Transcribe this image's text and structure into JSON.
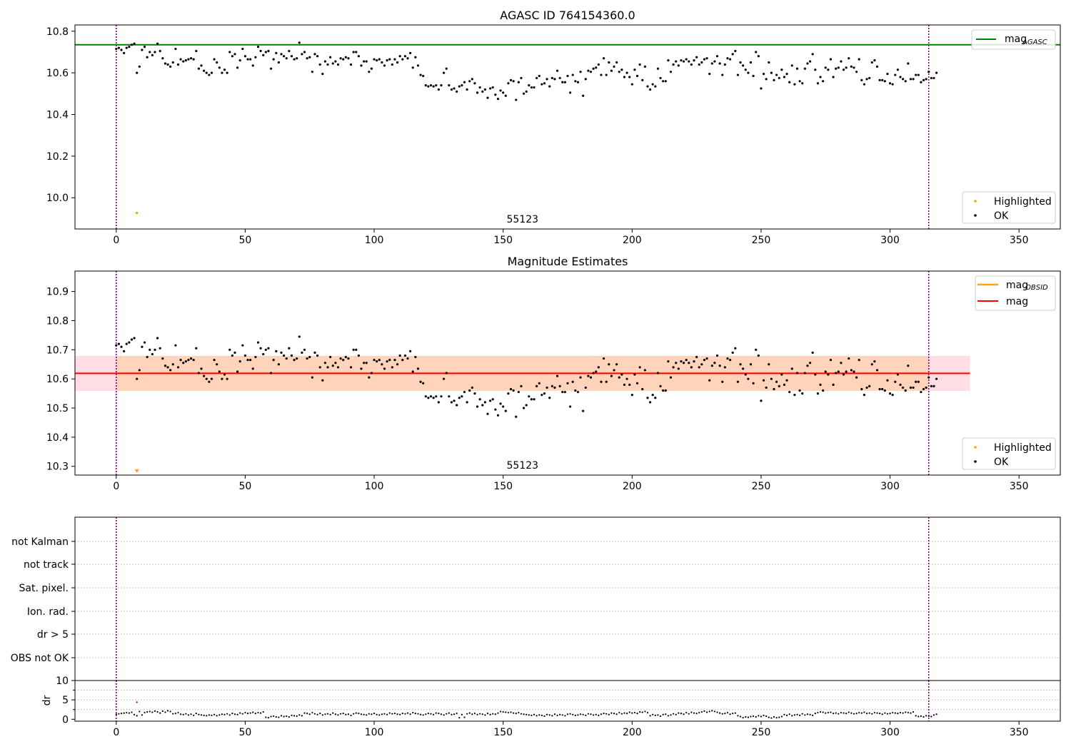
{
  "colors": {
    "agasc_line": "#008000",
    "obsid_line": "#ffa500",
    "mag_line": "#ff0000",
    "ok_points": "#000000",
    "highlighted_points": "#ffa500",
    "obs_boundary": "#800080",
    "band_fill": "#ffb6c1",
    "band_fill_inner": "#ffcc99",
    "flag_grid": "#b0b0b0",
    "dr_highlight": "#ff0000"
  },
  "chart_data": [
    {
      "type": "scatter",
      "title": "AGASC ID 764154360.0",
      "xlim": [
        -16,
        366
      ],
      "ylim": [
        9.85,
        10.83
      ],
      "xticks": [
        0,
        50,
        100,
        150,
        200,
        250,
        300,
        350
      ],
      "yticks": [
        10.0,
        10.2,
        10.4,
        10.6,
        10.8
      ],
      "ytick_labels": [
        "10.0",
        "10.2",
        "10.4",
        "10.6",
        "10.8"
      ],
      "obs_boundaries": [
        0,
        315
      ],
      "obsid_annotation": {
        "text": "55123",
        "x": 157.5
      },
      "hline": {
        "name": "mag_AGASC",
        "y": 10.735,
        "x": [
          -16,
          366
        ]
      },
      "highlighted": {
        "x": [
          8
        ],
        "y": [
          9.927
        ]
      },
      "legend_lines": [
        {
          "label": "mag",
          "sub": "AGASC"
        }
      ],
      "legend_points": [
        {
          "label": "Highlighted"
        },
        {
          "label": "OK"
        }
      ]
    },
    {
      "type": "scatter",
      "title": "Magnitude Estimates",
      "xlim": [
        -16,
        366
      ],
      "ylim": [
        10.27,
        10.97
      ],
      "xticks": [
        0,
        50,
        100,
        150,
        200,
        250,
        300,
        350
      ],
      "yticks": [
        10.3,
        10.4,
        10.5,
        10.6,
        10.7,
        10.8,
        10.9
      ],
      "ytick_labels": [
        "10.3",
        "10.4",
        "10.5",
        "10.6",
        "10.7",
        "10.8",
        "10.9"
      ],
      "obs_boundaries": [
        0,
        315
      ],
      "obsid_annotation": {
        "text": "55123",
        "x": 157.5
      },
      "mag_line": {
        "y": 10.619,
        "x": [
          -16,
          331
        ]
      },
      "band": {
        "low": 10.559,
        "high": 10.679,
        "x": [
          -16,
          331
        ]
      },
      "highlighted": {
        "x": [
          8
        ],
        "y": [
          10.272
        ]
      },
      "legend_lines": [
        {
          "label": "mag",
          "sub": "OBSID"
        },
        {
          "label": "mag",
          "sub": ""
        }
      ],
      "legend_points": [
        {
          "label": "Highlighted"
        },
        {
          "label": "OK"
        }
      ]
    },
    {
      "type": "scatter",
      "xlim": [
        -16,
        366
      ],
      "xticks": [
        0,
        50,
        100,
        150,
        200,
        250,
        300,
        350
      ],
      "obs_boundaries": [
        0,
        315
      ],
      "flag_labels": [
        "not Kalman",
        "not track",
        "Sat. pixel.",
        "Ion. rad.",
        "dr > 5",
        "OBS not OK"
      ],
      "dr_ylabel": "dr",
      "dr_ylim": [
        -0.5,
        10
      ],
      "dr_yticks": [
        0,
        5,
        10
      ],
      "dr_ytick_labels": [
        "0",
        "5",
        "10"
      ],
      "dr_highlight": {
        "x": [
          8
        ],
        "y": [
          4.4
        ]
      },
      "dr_values": [
        1.3,
        1.4,
        1.5,
        1.6,
        1.7,
        1.6,
        1.8,
        1.2,
        0.9,
        2.0,
        1.1,
        1.7,
        1.9,
        2.0,
        1.8,
        2.1,
        1.9,
        1.6,
        2.1,
        1.8,
        2.2,
        2.0,
        1.4,
        1.5,
        1.7,
        1.3,
        1.2,
        1.4,
        1.1,
        1.3,
        1.0,
        1.5,
        1.2,
        1.1,
        1.0,
        0.9,
        1.1,
        1.0,
        1.2,
        0.9,
        1.1,
        1.3,
        1.2,
        1.4,
        1.1,
        1.5,
        1.3,
        1.2,
        1.6,
        1.4,
        1.7,
        1.5,
        1.6,
        1.8,
        1.5,
        1.7,
        1.6,
        1.9,
        0.5,
        0.4,
        0.7,
        0.8,
        0.6,
        0.5,
        0.9,
        0.7,
        0.8,
        0.6,
        1.0,
        0.9,
        0.8,
        1.1,
        0.9,
        1.6,
        1.5,
        1.3,
        1.7,
        1.4,
        1.2,
        1.5,
        1.1,
        1.3,
        1.4,
        1.2,
        1.6,
        1.3,
        1.1,
        1.4,
        1.5,
        1.2,
        1.3,
        1.0,
        1.4,
        1.6,
        1.5,
        1.3,
        1.2,
        1.1,
        1.4,
        1.3,
        1.5,
        1.2,
        1.1,
        1.3,
        1.4,
        1.2,
        1.6,
        1.4,
        1.5,
        1.3,
        1.2,
        1.5,
        1.4,
        1.6,
        1.3,
        1.7,
        1.5,
        1.4,
        1.2,
        1.1,
        1.3,
        1.5,
        1.4,
        1.2,
        1.6,
        1.5,
        1.3,
        1.1,
        1.4,
        1.6,
        1.2,
        1.3,
        1.5,
        0.4,
        1.2,
        0.5,
        1.4,
        1.6,
        1.3,
        1.5,
        1.2,
        1.4,
        1.3,
        1.1,
        1.5,
        1.2,
        1.4,
        1.3,
        1.6,
        2.0,
        1.9,
        1.8,
        1.7,
        1.8,
        1.6,
        1.5,
        1.7,
        1.4,
        1.3,
        1.2,
        1.1,
        1.0,
        1.2,
        0.9,
        1.1,
        1.0,
        0.8,
        1.2,
        1.1,
        0.9,
        1.3,
        1.0,
        1.2,
        1.1,
        0.9,
        1.3,
        1.4,
        1.2,
        1.0,
        1.1,
        1.3,
        1.2,
        1.0,
        1.4,
        1.3,
        1.1,
        1.2,
        1.0,
        1.3,
        1.5,
        1.4,
        1.2,
        1.6,
        1.5,
        1.3,
        1.7,
        1.4,
        1.6,
        1.5,
        1.8,
        1.6,
        1.7,
        1.5,
        1.9,
        1.8,
        2.0,
        1.7,
        0.9,
        1.2,
        1.0,
        1.1,
        0.8,
        1.2,
        1.3,
        0.9,
        1.1,
        1.4,
        1.2,
        1.6,
        1.5,
        1.3,
        1.7,
        1.4,
        1.8,
        1.6,
        1.5,
        1.7,
        1.9,
        2.1,
        1.8,
        2.0,
        2.2,
        2.0,
        1.8,
        1.6,
        1.4,
        1.5,
        1.7,
        1.3,
        1.5,
        1.6,
        0.9,
        0.7,
        0.4,
        0.6,
        0.5,
        0.7,
        0.8,
        0.6,
        0.9,
        0.7,
        1.0,
        0.8,
        0.5,
        0.3,
        0.6,
        0.4,
        0.5,
        0.7,
        1.2,
        1.0,
        1.3,
        0.9,
        1.1,
        1.2,
        1.0,
        1.4,
        1.1,
        1.3,
        1.2,
        1.0,
        1.5,
        1.7,
        1.9,
        1.8,
        1.6,
        1.7,
        1.8,
        1.5,
        1.6,
        1.4,
        1.7,
        1.6,
        1.5,
        1.8,
        1.6,
        1.4,
        1.5,
        1.7,
        1.6,
        1.8,
        1.5,
        1.6,
        1.4,
        1.7,
        1.6,
        1.5,
        1.3,
        1.6,
        1.4,
        1.5,
        1.7,
        1.6,
        1.5,
        1.7,
        1.6,
        1.8,
        1.7,
        1.6,
        1.9,
        0.9,
        0.7,
        0.8,
        0.6,
        0.9,
        0.8,
        0.7,
        1.1,
        1.3
      ],
      "legend": "none"
    }
  ],
  "points": [
    [
      0,
      10.715
    ],
    [
      1,
      10.72
    ],
    [
      2,
      10.71
    ],
    [
      3,
      10.695
    ],
    [
      4,
      10.72
    ],
    [
      5,
      10.725
    ],
    [
      6,
      10.735
    ],
    [
      7,
      10.74
    ],
    [
      8,
      10.6
    ],
    [
      9,
      10.63
    ],
    [
      10,
      10.71
    ],
    [
      11,
      10.725
    ],
    [
      12,
      10.675
    ],
    [
      13,
      10.7
    ],
    [
      14,
      10.685
    ],
    [
      15,
      10.7
    ],
    [
      16,
      10.74
    ],
    [
      17,
      10.705
    ],
    [
      18,
      10.67
    ],
    [
      19,
      10.645
    ],
    [
      20,
      10.64
    ],
    [
      21,
      10.63
    ],
    [
      22,
      10.65
    ],
    [
      23,
      10.715
    ],
    [
      24,
      10.64
    ],
    [
      25,
      10.665
    ],
    [
      26,
      10.655
    ],
    [
      27,
      10.66
    ],
    [
      28,
      10.665
    ],
    [
      29,
      10.67
    ],
    [
      30,
      10.665
    ],
    [
      31,
      10.705
    ],
    [
      32,
      10.62
    ],
    [
      33,
      10.635
    ],
    [
      34,
      10.61
    ],
    [
      35,
      10.6
    ],
    [
      36,
      10.59
    ],
    [
      37,
      10.6
    ],
    [
      38,
      10.665
    ],
    [
      39,
      10.65
    ],
    [
      40,
      10.625
    ],
    [
      41,
      10.6
    ],
    [
      42,
      10.615
    ],
    [
      43,
      10.6
    ],
    [
      44,
      10.7
    ],
    [
      45,
      10.68
    ],
    [
      46,
      10.69
    ],
    [
      47,
      10.625
    ],
    [
      48,
      10.66
    ],
    [
      49,
      10.715
    ],
    [
      50,
      10.68
    ],
    [
      51,
      10.665
    ],
    [
      52,
      10.665
    ],
    [
      53,
      10.635
    ],
    [
      54,
      10.675
    ],
    [
      55,
      10.725
    ],
    [
      56,
      10.705
    ],
    [
      57,
      10.685
    ],
    [
      58,
      10.7
    ],
    [
      59,
      10.705
    ],
    [
      60,
      10.62
    ],
    [
      61,
      10.665
    ],
    [
      62,
      10.695
    ],
    [
      63,
      10.65
    ],
    [
      64,
      10.69
    ],
    [
      65,
      10.68
    ],
    [
      66,
      10.67
    ],
    [
      67,
      10.705
    ],
    [
      68,
      10.68
    ],
    [
      69,
      10.665
    ],
    [
      70,
      10.67
    ],
    [
      71,
      10.745
    ],
    [
      72,
      10.69
    ],
    [
      73,
      10.7
    ],
    [
      74,
      10.67
    ],
    [
      75,
      10.675
    ],
    [
      76,
      10.605
    ],
    [
      77,
      10.69
    ],
    [
      78,
      10.68
    ],
    [
      79,
      10.64
    ],
    [
      80,
      10.595
    ],
    [
      81,
      10.655
    ],
    [
      82,
      10.64
    ],
    [
      83,
      10.675
    ],
    [
      84,
      10.645
    ],
    [
      85,
      10.655
    ],
    [
      86,
      10.64
    ],
    [
      87,
      10.67
    ],
    [
      88,
      10.665
    ],
    [
      89,
      10.675
    ],
    [
      90,
      10.67
    ],
    [
      91,
      10.64
    ],
    [
      92,
      10.7
    ],
    [
      93,
      10.7
    ],
    [
      94,
      10.68
    ],
    [
      95,
      10.635
    ],
    [
      96,
      10.655
    ],
    [
      97,
      10.655
    ],
    [
      98,
      10.605
    ],
    [
      99,
      10.62
    ],
    [
      100,
      10.665
    ],
    [
      101,
      10.66
    ],
    [
      102,
      10.665
    ],
    [
      103,
      10.65
    ],
    [
      104,
      10.635
    ],
    [
      105,
      10.66
    ],
    [
      106,
      10.665
    ],
    [
      107,
      10.64
    ],
    [
      108,
      10.665
    ],
    [
      109,
      10.65
    ],
    [
      110,
      10.68
    ],
    [
      111,
      10.665
    ],
    [
      112,
      10.68
    ],
    [
      113,
      10.67
    ],
    [
      114,
      10.695
    ],
    [
      115,
      10.625
    ],
    [
      116,
      10.675
    ],
    [
      117,
      10.635
    ],
    [
      118,
      10.59
    ],
    [
      119,
      10.585
    ],
    [
      120,
      10.54
    ],
    [
      121,
      10.535
    ],
    [
      122,
      10.54
    ],
    [
      123,
      10.535
    ],
    [
      124,
      10.54
    ],
    [
      125,
      10.52
    ],
    [
      126,
      10.54
    ],
    [
      127,
      10.6
    ],
    [
      128,
      10.62
    ],
    [
      129,
      10.54
    ],
    [
      130,
      10.52
    ],
    [
      131,
      10.525
    ],
    [
      132,
      10.51
    ],
    [
      133,
      10.535
    ],
    [
      134,
      10.54
    ],
    [
      135,
      10.555
    ],
    [
      136,
      10.52
    ],
    [
      137,
      10.56
    ],
    [
      138,
      10.57
    ],
    [
      139,
      10.55
    ],
    [
      140,
      10.505
    ],
    [
      141,
      10.53
    ],
    [
      142,
      10.51
    ],
    [
      143,
      10.52
    ],
    [
      144,
      10.48
    ],
    [
      145,
      10.525
    ],
    [
      146,
      10.53
    ],
    [
      147,
      10.495
    ],
    [
      148,
      10.475
    ],
    [
      149,
      10.515
    ],
    [
      150,
      10.505
    ],
    [
      151,
      10.49
    ],
    [
      152,
      10.55
    ],
    [
      153,
      10.565
    ],
    [
      154,
      10.56
    ],
    [
      155,
      10.47
    ],
    [
      156,
      10.555
    ],
    [
      157,
      10.575
    ],
    [
      158,
      10.5
    ],
    [
      159,
      10.51
    ],
    [
      160,
      10.54
    ],
    [
      161,
      10.53
    ],
    [
      162,
      10.53
    ],
    [
      163,
      10.575
    ],
    [
      164,
      10.585
    ],
    [
      165,
      10.545
    ],
    [
      166,
      10.55
    ],
    [
      167,
      10.57
    ],
    [
      168,
      10.535
    ],
    [
      169,
      10.575
    ],
    [
      170,
      10.57
    ],
    [
      171,
      10.61
    ],
    [
      172,
      10.575
    ],
    [
      173,
      10.555
    ],
    [
      174,
      10.555
    ],
    [
      175,
      10.585
    ],
    [
      176,
      10.505
    ],
    [
      177,
      10.59
    ],
    [
      178,
      10.56
    ],
    [
      179,
      10.555
    ],
    [
      180,
      10.605
    ],
    [
      181,
      10.49
    ],
    [
      182,
      10.57
    ],
    [
      183,
      10.61
    ],
    [
      184,
      10.605
    ],
    [
      185,
      10.62
    ],
    [
      186,
      10.625
    ],
    [
      187,
      10.64
    ],
    [
      188,
      10.59
    ],
    [
      189,
      10.67
    ],
    [
      190,
      10.59
    ],
    [
      191,
      10.65
    ],
    [
      192,
      10.61
    ],
    [
      193,
      10.63
    ],
    [
      194,
      10.65
    ],
    [
      195,
      10.605
    ],
    [
      196,
      10.615
    ],
    [
      197,
      10.58
    ],
    [
      198,
      10.6
    ],
    [
      199,
      10.58
    ],
    [
      200,
      10.545
    ],
    [
      201,
      10.615
    ],
    [
      202,
      10.585
    ],
    [
      203,
      10.64
    ],
    [
      204,
      10.565
    ],
    [
      205,
      10.63
    ],
    [
      206,
      10.535
    ],
    [
      207,
      10.52
    ],
    [
      208,
      10.545
    ],
    [
      209,
      10.535
    ],
    [
      210,
      10.62
    ],
    [
      211,
      10.575
    ],
    [
      212,
      10.56
    ],
    [
      213,
      10.56
    ],
    [
      214,
      10.66
    ],
    [
      215,
      10.605
    ],
    [
      216,
      10.64
    ],
    [
      217,
      10.655
    ],
    [
      218,
      10.635
    ],
    [
      219,
      10.66
    ],
    [
      220,
      10.655
    ],
    [
      221,
      10.665
    ],
    [
      222,
      10.655
    ],
    [
      223,
      10.64
    ],
    [
      224,
      10.66
    ],
    [
      225,
      10.675
    ],
    [
      226,
      10.64
    ],
    [
      227,
      10.65
    ],
    [
      228,
      10.665
    ],
    [
      229,
      10.67
    ],
    [
      230,
      10.595
    ],
    [
      231,
      10.645
    ],
    [
      232,
      10.655
    ],
    [
      233,
      10.68
    ],
    [
      234,
      10.645
    ],
    [
      235,
      10.59
    ],
    [
      236,
      10.64
    ],
    [
      237,
      10.67
    ],
    [
      238,
      10.665
    ],
    [
      239,
      10.69
    ],
    [
      240,
      10.705
    ],
    [
      241,
      10.59
    ],
    [
      242,
      10.65
    ],
    [
      243,
      10.635
    ],
    [
      244,
      10.615
    ],
    [
      245,
      10.6
    ],
    [
      246,
      10.65
    ],
    [
      247,
      10.585
    ],
    [
      248,
      10.7
    ],
    [
      249,
      10.68
    ],
    [
      250,
      10.525
    ],
    [
      251,
      10.595
    ],
    [
      252,
      10.57
    ],
    [
      253,
      10.65
    ],
    [
      254,
      10.6
    ],
    [
      255,
      10.565
    ],
    [
      256,
      10.59
    ],
    [
      257,
      10.575
    ],
    [
      258,
      10.615
    ],
    [
      259,
      10.58
    ],
    [
      260,
      10.595
    ],
    [
      261,
      10.555
    ],
    [
      262,
      10.635
    ],
    [
      263,
      10.545
    ],
    [
      264,
      10.62
    ],
    [
      265,
      10.56
    ],
    [
      266,
      10.55
    ],
    [
      267,
      10.62
    ],
    [
      268,
      10.645
    ],
    [
      269,
      10.655
    ],
    [
      270,
      10.69
    ],
    [
      271,
      10.615
    ],
    [
      272,
      10.55
    ],
    [
      273,
      10.58
    ],
    [
      274,
      10.56
    ],
    [
      275,
      10.625
    ],
    [
      276,
      10.615
    ],
    [
      277,
      10.665
    ],
    [
      278,
      10.58
    ],
    [
      279,
      10.62
    ],
    [
      280,
      10.625
    ],
    [
      281,
      10.655
    ],
    [
      282,
      10.615
    ],
    [
      283,
      10.625
    ],
    [
      284,
      10.67
    ],
    [
      285,
      10.63
    ],
    [
      286,
      10.625
    ],
    [
      287,
      10.605
    ],
    [
      288,
      10.665
    ],
    [
      289,
      10.565
    ],
    [
      290,
      10.545
    ],
    [
      291,
      10.57
    ],
    [
      292,
      10.575
    ],
    [
      293,
      10.65
    ],
    [
      294,
      10.66
    ],
    [
      295,
      10.63
    ],
    [
      296,
      10.565
    ],
    [
      297,
      10.565
    ],
    [
      298,
      10.56
    ],
    [
      299,
      10.595
    ],
    [
      300,
      10.55
    ],
    [
      301,
      10.545
    ],
    [
      302,
      10.59
    ],
    [
      303,
      10.615
    ],
    [
      304,
      10.58
    ],
    [
      305,
      10.57
    ],
    [
      306,
      10.56
    ],
    [
      307,
      10.645
    ],
    [
      308,
      10.57
    ],
    [
      309,
      10.57
    ],
    [
      310,
      10.59
    ],
    [
      311,
      10.59
    ],
    [
      312,
      10.555
    ],
    [
      313,
      10.565
    ],
    [
      314,
      10.57
    ],
    [
      315,
      10.605
    ],
    [
      316,
      10.575
    ],
    [
      317,
      10.575
    ],
    [
      318,
      10.6
    ]
  ]
}
